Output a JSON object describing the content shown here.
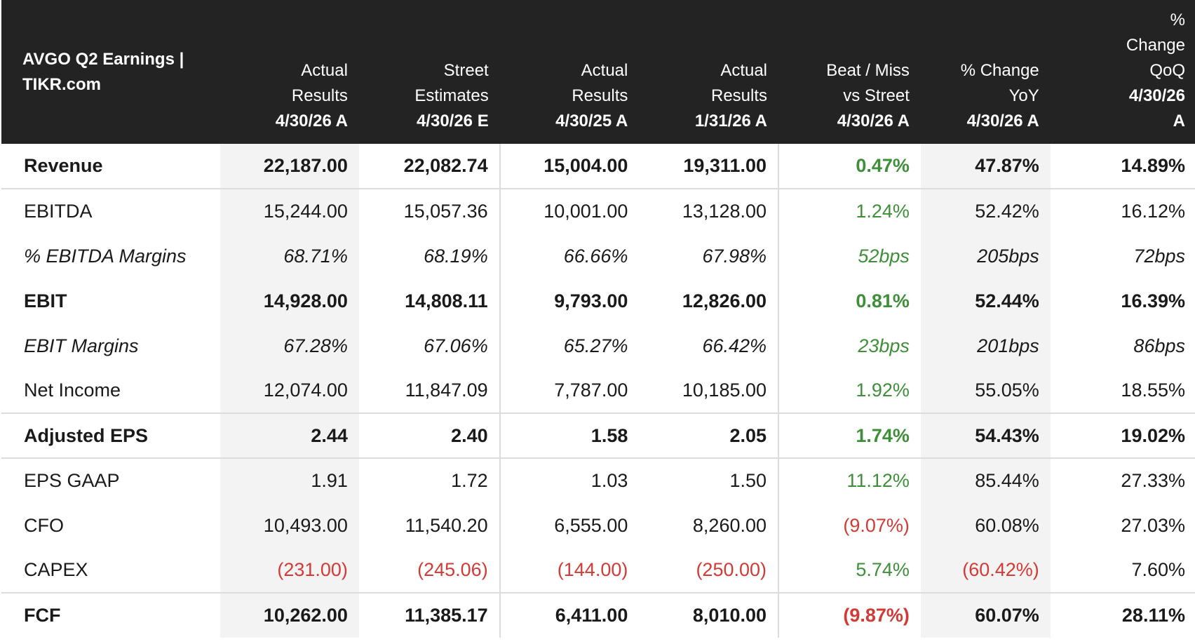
{
  "header": {
    "title_line1": "AVGO Q2 Earnings |",
    "title_line2": "TIKR.com",
    "columns": [
      {
        "l1": "Actual",
        "l2": "Results",
        "date": "4/30/26 A"
      },
      {
        "l1": "Street",
        "l2": "Estimates",
        "date": "4/30/26 E"
      },
      {
        "l1": "Actual",
        "l2": "Results",
        "date": "4/30/25 A"
      },
      {
        "l1": "Actual",
        "l2": "Results",
        "date": "1/31/26 A"
      },
      {
        "l1": "Beat / Miss",
        "l2": "vs Street",
        "date": "4/30/26 A"
      },
      {
        "l1": "% Change",
        "l2": "YoY",
        "date": "4/30/26 A"
      },
      {
        "l0": "%",
        "l1": "Change",
        "l2": "QoQ",
        "date": "4/30/26",
        "date2": "A"
      }
    ]
  },
  "rows": [
    {
      "label": "Revenue",
      "values": [
        "22,187.00",
        "22,082.74",
        "15,004.00",
        "19,311.00",
        "0.47%",
        "47.87%",
        "14.89%"
      ]
    },
    {
      "label": "EBITDA",
      "values": [
        "15,244.00",
        "15,057.36",
        "10,001.00",
        "13,128.00",
        "1.24%",
        "52.42%",
        "16.12%"
      ]
    },
    {
      "label": "% EBITDA Margins",
      "values": [
        "68.71%",
        "68.19%",
        "66.66%",
        "67.98%",
        "52bps",
        "205bps",
        "72bps"
      ]
    },
    {
      "label": "EBIT",
      "values": [
        "14,928.00",
        "14,808.11",
        "9,793.00",
        "12,826.00",
        "0.81%",
        "52.44%",
        "16.39%"
      ]
    },
    {
      "label": "EBIT Margins",
      "values": [
        "67.28%",
        "67.06%",
        "65.27%",
        "66.42%",
        "23bps",
        "201bps",
        "86bps"
      ]
    },
    {
      "label": "Net Income",
      "values": [
        "12,074.00",
        "11,847.09",
        "7,787.00",
        "10,185.00",
        "1.92%",
        "55.05%",
        "18.55%"
      ]
    },
    {
      "label": "Adjusted EPS",
      "values": [
        "2.44",
        "2.40",
        "1.58",
        "2.05",
        "1.74%",
        "54.43%",
        "19.02%"
      ]
    },
    {
      "label": "EPS GAAP",
      "values": [
        "1.91",
        "1.72",
        "1.03",
        "1.50",
        "11.12%",
        "85.44%",
        "27.33%"
      ]
    },
    {
      "label": "CFO",
      "values": [
        "10,493.00",
        "11,540.20",
        "6,555.00",
        "8,260.00",
        "(9.07%)",
        "60.08%",
        "27.03%"
      ]
    },
    {
      "label": "CAPEX",
      "values": [
        "(231.00)",
        "(245.06)",
        "(144.00)",
        "(250.00)",
        "5.74%",
        "(60.42%)",
        "7.60%"
      ]
    },
    {
      "label": "FCF",
      "values": [
        "10,262.00",
        "11,385.17",
        "6,411.00",
        "8,010.00",
        "(9.87%)",
        "60.07%",
        "28.11%"
      ]
    }
  ],
  "colors": {
    "header_bg": "#232323",
    "positive": "#3f8f3a",
    "negative": "#d23b35",
    "shade": "#f3f3f3"
  }
}
